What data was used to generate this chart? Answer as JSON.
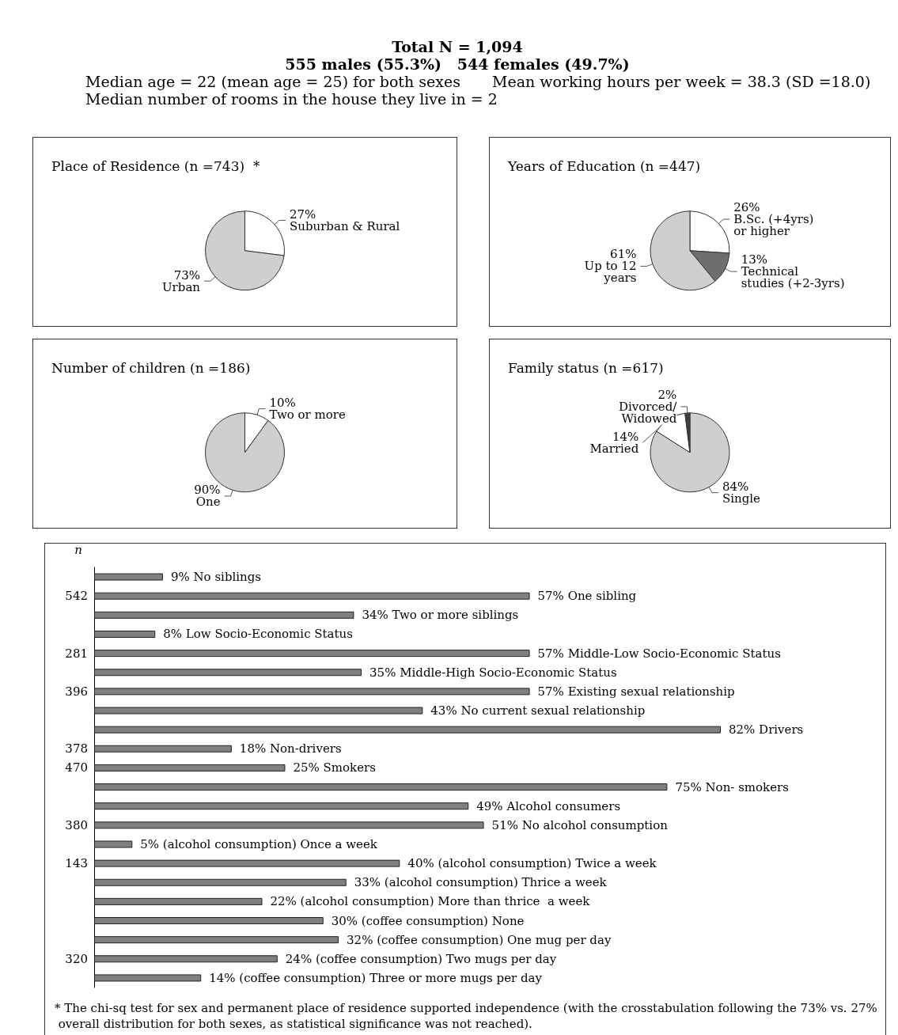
{
  "chart_data": [
    {
      "type": "other",
      "title": "Total N = 1,094",
      "annotations": [
        "555 males (55.3%)   544 females (49.7%)",
        "Median age = 22 (mean age = 25) for both sexes",
        "Mean working hours per week = 38.3 (SD =18.0)",
        "Median number of rooms in the house they live in = 2"
      ]
    },
    {
      "type": "pie",
      "title": "Place of Residence (n =743)  *",
      "categories": [
        "Suburban & Rural",
        "Urban"
      ],
      "values": [
        27,
        73
      ],
      "value_labels": [
        "27%",
        "73%"
      ],
      "colors": [
        "#ffffff",
        "#cfcfcf"
      ],
      "legend": false
    },
    {
      "type": "pie",
      "title": "Years of Education (n =447)",
      "categories": [
        "B.Sc. (+4yrs)\nor higher",
        "Technical\nstudies (+2-3yrs)",
        "Up to 12\nyears"
      ],
      "values": [
        26,
        13,
        61
      ],
      "value_labels": [
        "26%",
        "13%",
        "61%"
      ],
      "colors": [
        "#ffffff",
        "#6e6e6e",
        "#cfcfcf"
      ],
      "legend": false
    },
    {
      "type": "pie",
      "title": "Number of children (n =186)",
      "categories": [
        "Two or more",
        "One"
      ],
      "values": [
        10,
        90
      ],
      "value_labels": [
        "10%",
        "90%"
      ],
      "colors": [
        "#ffffff",
        "#cfcfcf"
      ],
      "legend": false
    },
    {
      "type": "pie",
      "title": "Family status (n =617)",
      "categories": [
        "Single",
        "Married",
        "Divorced/\nWidowed"
      ],
      "values": [
        84,
        14,
        2
      ],
      "value_labels": [
        "84%",
        "14%",
        "2%"
      ],
      "colors": [
        "#cfcfcf",
        "#ffffff",
        "#404040"
      ],
      "legend": false
    },
    {
      "type": "bar",
      "orientation": "horizontal",
      "ylabel": "n",
      "tick_labels": "y",
      "color": "#808080",
      "categories": [
        null,
        "542",
        null,
        null,
        "281",
        null,
        "396",
        null,
        null,
        "378",
        "470",
        null,
        null,
        "380",
        null,
        "143",
        null,
        null,
        null,
        null,
        "320",
        null
      ],
      "values": [
        9,
        57,
        34,
        8,
        57,
        35,
        57,
        43,
        82,
        18,
        25,
        75,
        49,
        51,
        5,
        40,
        33,
        22,
        30,
        32,
        24,
        14
      ],
      "value_labels": [
        "9% No siblings",
        "57% One sibling",
        "34% Two or more siblings",
        "8% Low Socio-Economic Status",
        "57% Middle-Low Socio-Economic Status",
        "35% Middle-High Socio-Economic Status",
        "57% Existing sexual relationship",
        "43% No current sexual relationship",
        "82% Drivers",
        "18% Non-drivers",
        "25% Smokers",
        "75% Non- smokers",
        "49% Alcohol consumers",
        "51% No alcohol consumption",
        "5% (alcohol consumption) Once a week",
        "40% (alcohol consumption) Twice a week",
        "33% (alcohol consumption) Thrice a week",
        "22% (alcohol consumption) More than thrice  a week",
        "30% (coffee consumption) None",
        "32% (coffee consumption) One mug per day",
        "24% (coffee consumption) Two mugs per day",
        "14% (coffee consumption) Three or more mugs per day"
      ],
      "annotations": [
        "* The chi-sq test for sex and permanent place of residence supported independence (with the crosstabulation following the 73% vs. 27% overall distribution for both sexes, as statistical significance was not reached)."
      ]
    }
  ]
}
